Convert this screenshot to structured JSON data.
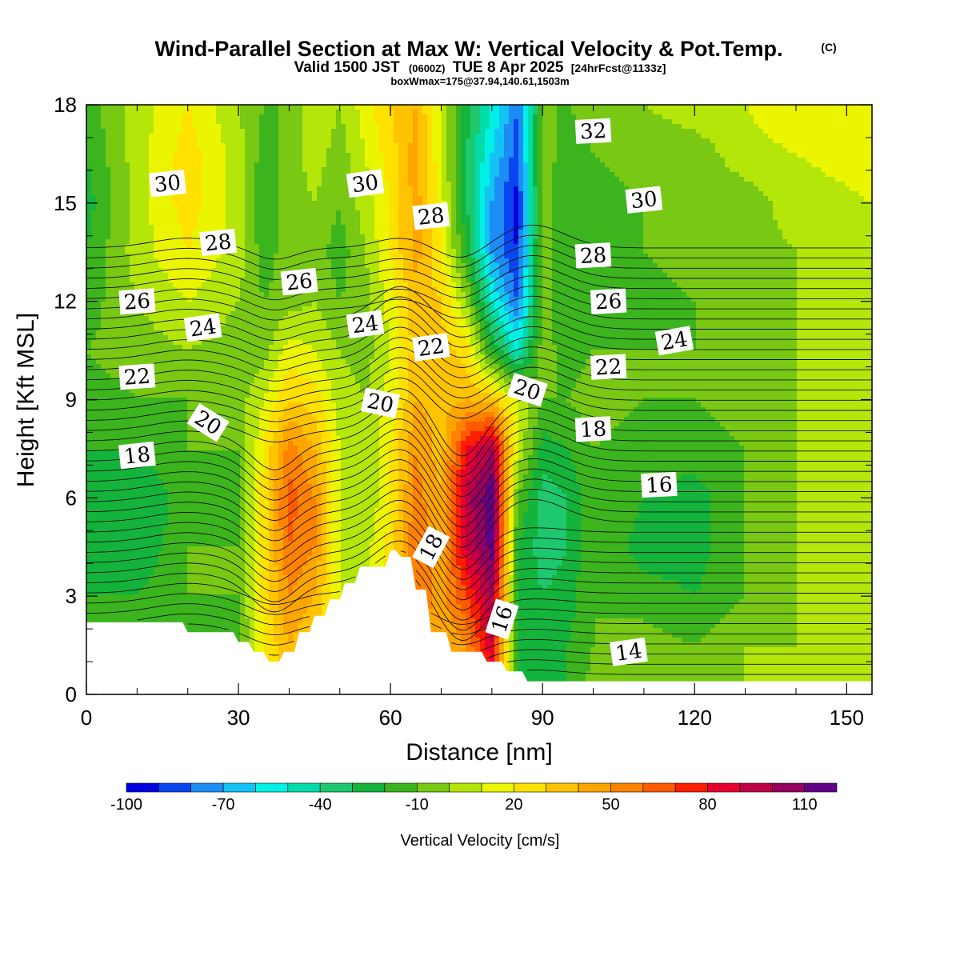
{
  "title": {
    "main": "Wind-Parallel Section at Max W: Vertical Velocity & Pot.Temp.",
    "copyright": "(C)",
    "valid_prefix": "Valid 1500 JST",
    "valid_utc": "(0600Z)",
    "valid_date": "TUE 8 Apr 2025",
    "forecast": "[24hrFcst@1133z]",
    "box": "boxWmax=175@37.94,140.61,1503m"
  },
  "chart_data": {
    "type": "heatmap",
    "xlabel": "Distance [nm]",
    "ylabel": "Height [Kft MSL]",
    "xlim": [
      0,
      155
    ],
    "ylim": [
      0,
      18
    ],
    "x_ticks": [
      0,
      30,
      60,
      90,
      120,
      150
    ],
    "y_ticks": [
      0,
      3,
      6,
      9,
      12,
      15,
      18
    ],
    "colorbar": {
      "label": "Vertical Velocity [cm/s]",
      "levels": [
        -100,
        -90,
        -80,
        -70,
        -60,
        -50,
        -40,
        -30,
        -20,
        -10,
        0,
        10,
        20,
        30,
        40,
        50,
        60,
        70,
        80,
        90,
        100,
        110,
        120
      ],
      "tick_labels": [
        "-100",
        "-70",
        "-40",
        "-10",
        "20",
        "50",
        "80",
        "110"
      ],
      "colors": [
        "#0000e0",
        "#0a46f0",
        "#1e8cf5",
        "#14c2f5",
        "#00f0e6",
        "#00dcaa",
        "#1ec86e",
        "#14b43c",
        "#3cb41e",
        "#78c814",
        "#b4e60a",
        "#ebf500",
        "#ffe100",
        "#ffc300",
        "#ffa500",
        "#ff8200",
        "#ff5a00",
        "#ff1e00",
        "#e6002d",
        "#be0046",
        "#96005f",
        "#640087"
      ]
    },
    "fields": {
      "vertical_velocity_cm_s": {
        "x_nm": [
          0,
          10,
          20,
          30,
          35,
          40,
          45,
          50,
          55,
          60,
          65,
          70,
          75,
          80,
          85,
          90,
          95,
          100,
          110,
          120,
          130,
          140,
          155
        ],
        "z_kft": [
          0,
          1.5,
          3,
          4.5,
          6,
          7.5,
          9,
          10.5,
          12,
          13.5,
          15,
          16.5,
          18
        ],
        "values": [
          [
            -15,
            -15,
            -15,
            -15,
            20,
            25,
            20,
            10,
            10,
            15,
            40,
            25,
            30,
            60,
            -20,
            -20,
            -20,
            -5,
            -5,
            -5,
            0,
            0,
            0
          ],
          [
            -15,
            -15,
            -15,
            -15,
            20,
            40,
            30,
            10,
            10,
            20,
            50,
            40,
            50,
            90,
            -20,
            -25,
            -20,
            -10,
            -5,
            -10,
            0,
            0,
            0
          ],
          [
            -20,
            -20,
            -10,
            -10,
            25,
            50,
            40,
            10,
            10,
            25,
            60,
            45,
            70,
            100,
            -20,
            -30,
            -25,
            -10,
            -15,
            -20,
            -10,
            0,
            0
          ],
          [
            -25,
            -30,
            -10,
            -10,
            25,
            60,
            50,
            10,
            5,
            25,
            60,
            40,
            90,
            115,
            -20,
            -35,
            -30,
            -10,
            -25,
            -25,
            -10,
            0,
            0
          ],
          [
            -25,
            -30,
            -15,
            -10,
            25,
            65,
            50,
            10,
            0,
            20,
            55,
            40,
            95,
            120,
            -10,
            -35,
            -30,
            -10,
            -20,
            -25,
            -10,
            0,
            0
          ],
          [
            -20,
            -20,
            -10,
            -10,
            20,
            55,
            40,
            10,
            0,
            20,
            50,
            35,
            80,
            100,
            10,
            -25,
            -20,
            -10,
            -15,
            -15,
            -10,
            0,
            0
          ],
          [
            -15,
            -10,
            -10,
            -5,
            10,
            30,
            25,
            5,
            0,
            15,
            40,
            35,
            40,
            35,
            10,
            -10,
            -10,
            -5,
            -10,
            -10,
            -5,
            0,
            0
          ],
          [
            -10,
            -5,
            0,
            -5,
            -5,
            15,
            10,
            0,
            -5,
            10,
            35,
            35,
            25,
            -20,
            -50,
            -5,
            -15,
            -10,
            -10,
            -10,
            -5,
            0,
            0
          ],
          [
            -15,
            0,
            10,
            0,
            -10,
            -5,
            0,
            -10,
            -5,
            15,
            35,
            30,
            0,
            -50,
            -80,
            -5,
            -20,
            -15,
            -15,
            -10,
            -5,
            0,
            0
          ],
          [
            -20,
            5,
            20,
            5,
            -15,
            -5,
            -5,
            -15,
            0,
            20,
            45,
            20,
            -20,
            -70,
            -90,
            -5,
            -20,
            -15,
            -10,
            -5,
            -5,
            0,
            0
          ],
          [
            -25,
            5,
            25,
            5,
            -20,
            -5,
            0,
            -10,
            5,
            20,
            45,
            15,
            -30,
            -70,
            -95,
            -5,
            -20,
            -15,
            -10,
            -5,
            -5,
            5,
            10
          ],
          [
            -20,
            5,
            25,
            5,
            -15,
            -5,
            5,
            -5,
            10,
            25,
            45,
            10,
            -30,
            -60,
            -85,
            -5,
            -15,
            -10,
            -5,
            -5,
            5,
            10,
            15
          ],
          [
            -15,
            5,
            20,
            0,
            -10,
            -10,
            10,
            0,
            15,
            30,
            40,
            10,
            -25,
            -50,
            -80,
            -10,
            -10,
            -5,
            0,
            5,
            10,
            20,
            20
          ]
        ]
      },
      "potential_temperature_contours": {
        "levels": [
          14,
          16,
          18,
          20,
          22,
          24,
          26,
          28,
          30,
          32
        ],
        "labels": [
          {
            "text": "30",
            "x": 16,
            "z": 15.6,
            "angle": -6
          },
          {
            "text": "28",
            "x": 26,
            "z": 13.8,
            "angle": -6
          },
          {
            "text": "26",
            "x": 10,
            "z": 12.0,
            "angle": -4
          },
          {
            "text": "24",
            "x": 23,
            "z": 11.2,
            "angle": -8
          },
          {
            "text": "22",
            "x": 10,
            "z": 9.7,
            "angle": -4
          },
          {
            "text": "20",
            "x": 24,
            "z": 8.3,
            "angle": 32
          },
          {
            "text": "18",
            "x": 10,
            "z": 7.3,
            "angle": -6
          },
          {
            "text": "30",
            "x": 55,
            "z": 15.6,
            "angle": -8
          },
          {
            "text": "26",
            "x": 42,
            "z": 12.6,
            "angle": -6
          },
          {
            "text": "24",
            "x": 55,
            "z": 11.3,
            "angle": -8
          },
          {
            "text": "28",
            "x": 68,
            "z": 14.6,
            "angle": -6
          },
          {
            "text": "22",
            "x": 68,
            "z": 10.6,
            "angle": -8
          },
          {
            "text": "20",
            "x": 58,
            "z": 8.9,
            "angle": 12
          },
          {
            "text": "18",
            "x": 68,
            "z": 4.5,
            "angle": -62
          },
          {
            "text": "16",
            "x": 82,
            "z": 2.3,
            "angle": -72
          },
          {
            "text": "32",
            "x": 100,
            "z": 17.2,
            "angle": -3
          },
          {
            "text": "30",
            "x": 110,
            "z": 15.1,
            "angle": -6
          },
          {
            "text": "28",
            "x": 100,
            "z": 13.4,
            "angle": -3
          },
          {
            "text": "26",
            "x": 103,
            "z": 12.0,
            "angle": -3
          },
          {
            "text": "24",
            "x": 116,
            "z": 10.8,
            "angle": -10
          },
          {
            "text": "22",
            "x": 103,
            "z": 10.0,
            "angle": -3
          },
          {
            "text": "20",
            "x": 87,
            "z": 9.3,
            "angle": 18
          },
          {
            "text": "18",
            "x": 100,
            "z": 8.1,
            "angle": -3
          },
          {
            "text": "16",
            "x": 113,
            "z": 6.4,
            "angle": -3
          },
          {
            "text": "14",
            "x": 107,
            "z": 1.3,
            "angle": -8
          }
        ]
      },
      "terrain_kft": {
        "x_nm": [
          0,
          19,
          20,
          29,
          30,
          32,
          33,
          35,
          36,
          38,
          39,
          41,
          42,
          44,
          45,
          47,
          48,
          50,
          51,
          53,
          54,
          59,
          60,
          61,
          62,
          64,
          65,
          67,
          68,
          71,
          72,
          78,
          79,
          82,
          83,
          86,
          87,
          90,
          155
        ],
        "z_kft": [
          2.2,
          2.2,
          1.9,
          1.9,
          1.6,
          1.6,
          1.3,
          1.3,
          1.0,
          1.0,
          1.3,
          1.3,
          1.9,
          1.9,
          2.4,
          2.4,
          2.9,
          2.9,
          3.4,
          3.4,
          3.9,
          3.9,
          4.4,
          4.4,
          4.2,
          4.2,
          3.2,
          3.2,
          1.9,
          1.9,
          1.3,
          1.3,
          1.0,
          1.0,
          0.7,
          0.7,
          0.4,
          0.4,
          0.4
        ]
      }
    }
  }
}
